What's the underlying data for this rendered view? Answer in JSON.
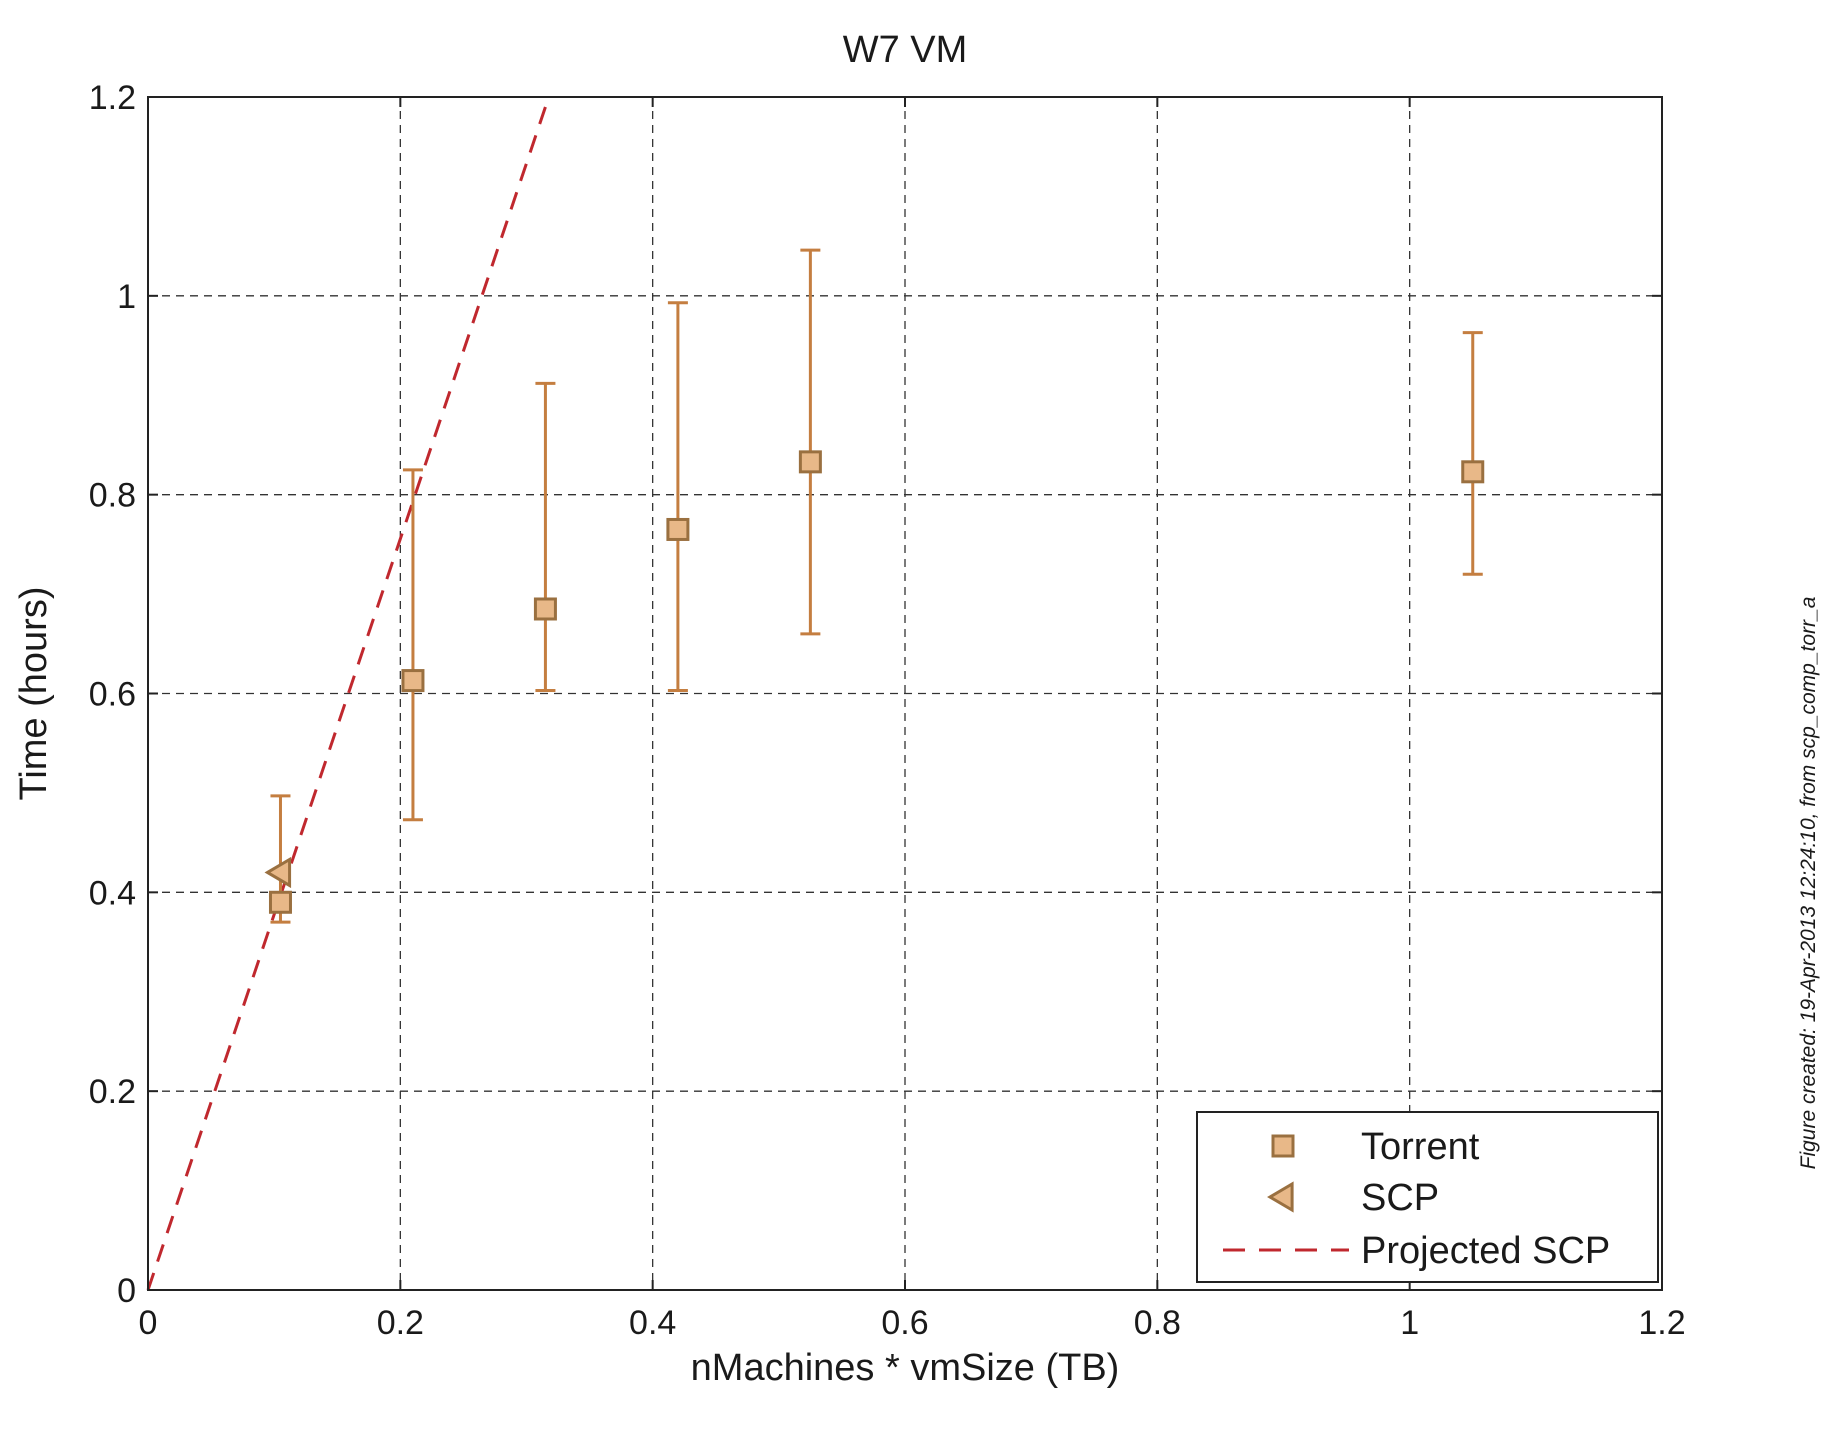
{
  "chart_data": {
    "type": "scatter",
    "title": "W7 VM",
    "xlabel": "nMachines * vmSize (TB)",
    "ylabel": "Time (hours)",
    "xlim": [
      0,
      1.2
    ],
    "ylim": [
      0,
      1.2
    ],
    "x_ticks": [
      "0",
      "0.2",
      "0.4",
      "0.6",
      "0.8",
      "1",
      "1.2"
    ],
    "y_ticks": [
      "0",
      "0.2",
      "0.4",
      "0.6",
      "0.8",
      "1",
      "1.2"
    ],
    "grid": true,
    "legend_position": "bottom-right",
    "series": [
      {
        "name": "Torrent",
        "marker": "square",
        "color": "#e8b888",
        "edge_color": "#9a7040",
        "errorbar_color": "#c47e40",
        "points": [
          {
            "x": 0.105,
            "y": 0.39,
            "low": 0.37,
            "high": 0.497
          },
          {
            "x": 0.21,
            "y": 0.613,
            "low": 0.473,
            "high": 0.825
          },
          {
            "x": 0.315,
            "y": 0.685,
            "low": 0.603,
            "high": 0.912
          },
          {
            "x": 0.42,
            "y": 0.765,
            "low": 0.603,
            "high": 0.993
          },
          {
            "x": 0.525,
            "y": 0.833,
            "low": 0.66,
            "high": 1.046
          },
          {
            "x": 1.05,
            "y": 0.823,
            "low": 0.72,
            "high": 0.963
          }
        ]
      },
      {
        "name": "SCP",
        "marker": "triangle-left",
        "color": "#e8b888",
        "edge_color": "#9a7040",
        "points": [
          {
            "x": 0.105,
            "y": 0.42
          }
        ]
      },
      {
        "name": "Projected SCP",
        "marker": "dashed-line",
        "color": "#c0282e",
        "points": [
          {
            "x": 0,
            "y": 0
          },
          {
            "x": 0.315,
            "y": 1.19
          }
        ]
      }
    ],
    "side_note": "Figure created: 19-Apr-2013 12:24:10, from scp_comp_torr_a"
  }
}
